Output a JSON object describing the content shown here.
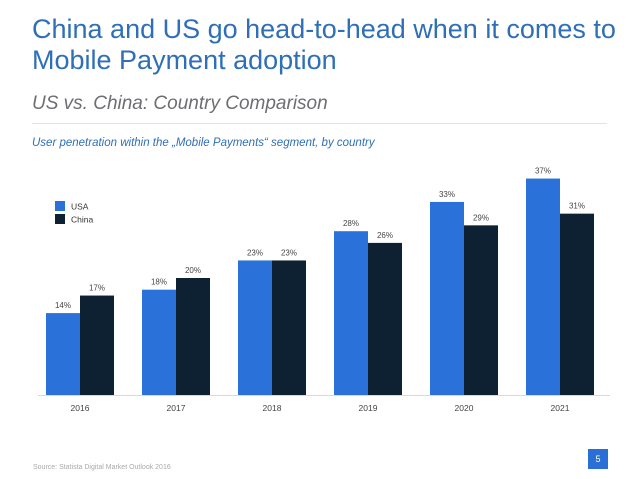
{
  "slide": {
    "title": "China and US go head-to-head when it comes to Mobile Payment adoption",
    "subtitle": "US vs. China: Country Comparison",
    "caption": "User penetration within the „Mobile Payments“ segment, by country",
    "source": "Source: Statista Digital Market Outlook 2016",
    "page_number": "5"
  },
  "chart_data": {
    "type": "bar",
    "categories": [
      "2016",
      "2017",
      "2018",
      "2019",
      "2020",
      "2021"
    ],
    "series": [
      {
        "name": "USA",
        "color": "#2a72d9",
        "values": [
          14,
          18,
          23,
          28,
          33,
          37
        ],
        "labels": [
          "14%",
          "18%",
          "23%",
          "28%",
          "33%",
          "37%"
        ]
      },
      {
        "name": "China",
        "color": "#0e2132",
        "values": [
          17,
          20,
          23,
          26,
          29,
          31
        ],
        "labels": [
          "17%",
          "20%",
          "23%",
          "26%",
          "29%",
          "31%"
        ]
      }
    ],
    "unit": "%",
    "ylim": [
      0,
      40
    ],
    "grid": false,
    "legend": "top-left"
  }
}
